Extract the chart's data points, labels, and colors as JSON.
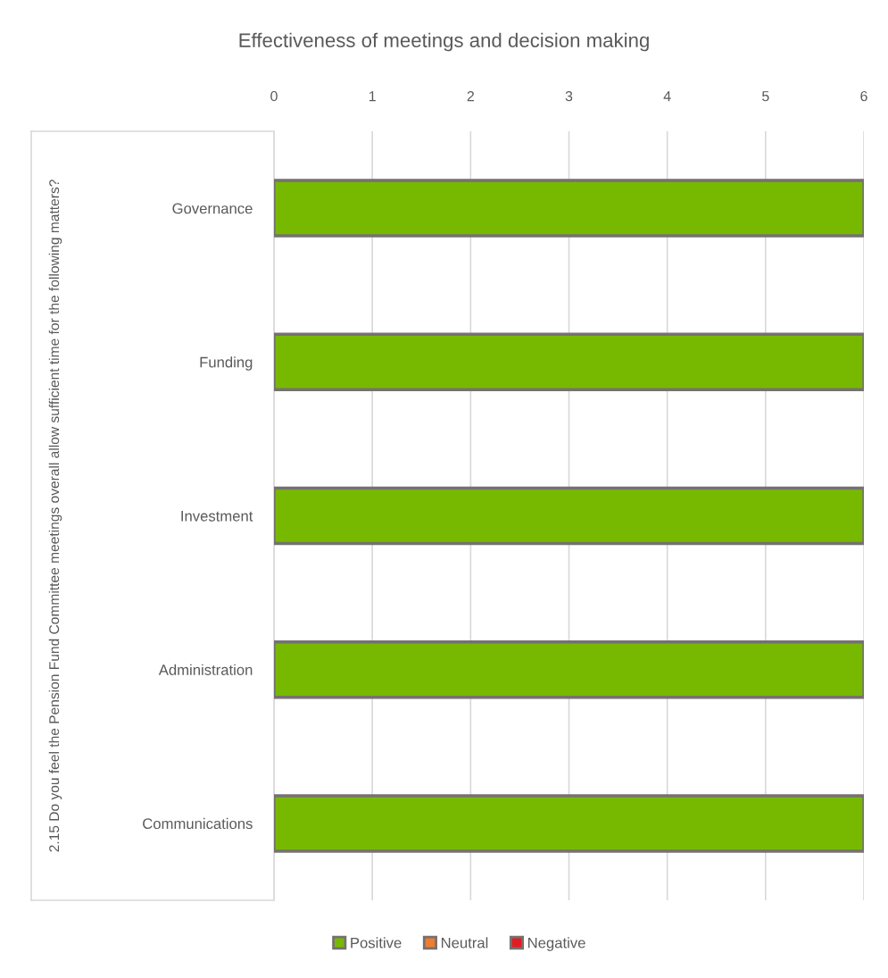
{
  "chart_data": {
    "type": "bar",
    "orientation": "horizontal",
    "stacked": true,
    "title": "Effectiveness of meetings and decision making",
    "annotations": [
      "2.15 Do you feel the Pension Fund Committee meetings overall allow sufficient time for the following matters?"
    ],
    "categories": [
      "Governance",
      "Funding",
      "Investment",
      "Administration",
      "Communications"
    ],
    "series": [
      {
        "name": "Positive",
        "color": "#77b900",
        "values": [
          6,
          6,
          6,
          6,
          6
        ]
      },
      {
        "name": "Neutral",
        "color": "#ed7d31",
        "values": [
          0,
          0,
          0,
          0,
          0
        ]
      },
      {
        "name": "Negative",
        "color": "#e31c23",
        "values": [
          0,
          0,
          0,
          0,
          0
        ]
      }
    ],
    "xlim": [
      0,
      6
    ],
    "xticks": [
      0,
      1,
      2,
      3,
      4,
      5,
      6
    ],
    "grid": "x",
    "legend": "bottom"
  }
}
